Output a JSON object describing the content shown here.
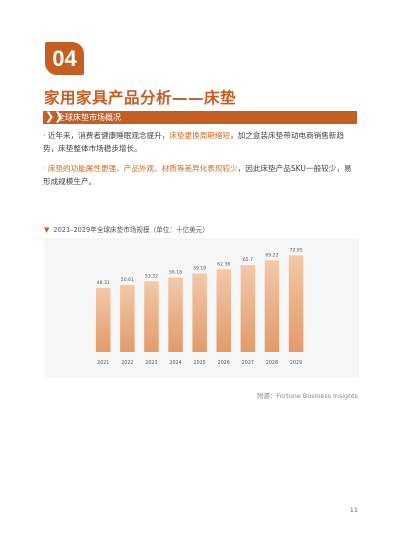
{
  "badge": "04",
  "title": "家用家具产品分析——床垫",
  "section": {
    "label": "全球床垫市场概况"
  },
  "paragraphs": [
    {
      "segments": [
        {
          "text": "· 近年来，消费者健康睡眠观念提升，",
          "hl": false
        },
        {
          "text": "床垫更换周期缩短",
          "hl": true
        },
        {
          "text": "，加之盒装床垫带动电商销售新趋势，床垫整体市场稳步增长。",
          "hl": false
        }
      ]
    },
    {
      "segments": [
        {
          "text": "· 床垫的功能属性更强，产品外观、材质等差异化表现较少",
          "hl": true
        },
        {
          "text": "，因此床垫产品SKU一般较少，易形成规模生产。",
          "hl": false
        }
      ]
    }
  ],
  "chart_title": "2021–2029年全球床垫市场规模（单位：十亿美元）",
  "chart_data": {
    "type": "bar",
    "title": "2021–2029年全球床垫市场规模（单位：十亿美元）",
    "categories": [
      "2021",
      "2022",
      "2023",
      "2024",
      "2025",
      "2026",
      "2027",
      "2028",
      "2029"
    ],
    "values": [
      48.31,
      50.61,
      53.32,
      56.18,
      59.19,
      62.36,
      65.7,
      69.22,
      72.95
    ],
    "value_labels": [
      "48.31",
      "50.61",
      "53.32",
      "56.18",
      "59.19",
      "62.36",
      "65.7",
      "69.22",
      "72.95"
    ],
    "ylim": [
      0,
      80
    ],
    "colors": {
      "bar_top": "#f2c9a8",
      "bar_bottom": "#e39a6b"
    }
  },
  "source": "附源：Fortune Business Insights",
  "page_number": "11"
}
